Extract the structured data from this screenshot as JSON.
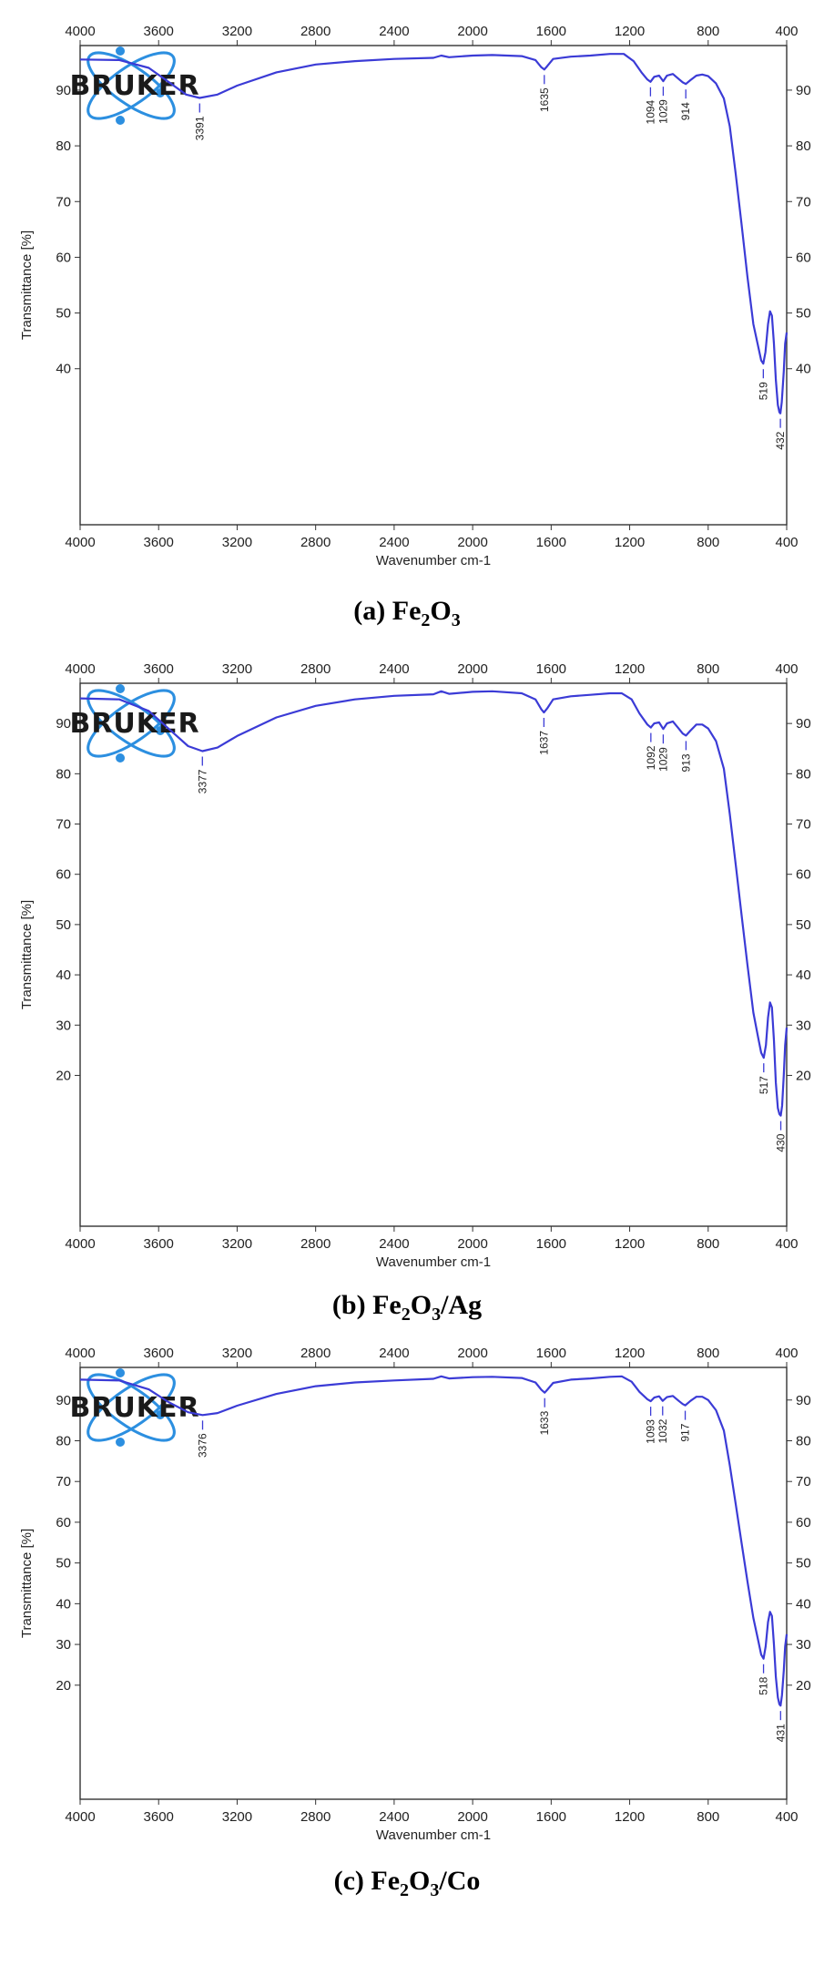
{
  "chart_data": [
    {
      "type": "line",
      "panel_caption": "(a) Fe2O3",
      "caption_parts": {
        "pre": "(a) Fe",
        "s1": "2",
        "mid": "O",
        "s2": "3",
        "post": ""
      },
      "xlabel": "Wavenumber cm-1",
      "ylabel": "Transmittance [%]",
      "xlim": [
        4000,
        400
      ],
      "ylim": [
        12,
        98
      ],
      "x_ticks": [
        4000,
        3600,
        3200,
        2800,
        2400,
        2000,
        1600,
        1200,
        800,
        400
      ],
      "y_ticks": [
        40,
        50,
        60,
        70,
        80,
        90
      ],
      "logo": "BRUKER",
      "series": [
        {
          "color": "#3b3bd6",
          "points": [
            [
              4000,
              95.5
            ],
            [
              3800,
              95.4
            ],
            [
              3650,
              94.0
            ],
            [
              3550,
              91.5
            ],
            [
              3460,
              89.2
            ],
            [
              3391,
              88.6
            ],
            [
              3300,
              89.2
            ],
            [
              3200,
              90.8
            ],
            [
              3000,
              93.2
            ],
            [
              2800,
              94.6
            ],
            [
              2600,
              95.2
            ],
            [
              2400,
              95.6
            ],
            [
              2200,
              95.8
            ],
            [
              2160,
              96.2
            ],
            [
              2120,
              95.9
            ],
            [
              2000,
              96.2
            ],
            [
              1900,
              96.3
            ],
            [
              1750,
              96.1
            ],
            [
              1680,
              95.4
            ],
            [
              1650,
              94.1
            ],
            [
              1635,
              93.7
            ],
            [
              1620,
              94.3
            ],
            [
              1590,
              95.6
            ],
            [
              1500,
              96.0
            ],
            [
              1400,
              96.2
            ],
            [
              1300,
              96.5
            ],
            [
              1230,
              96.5
            ],
            [
              1180,
              95.2
            ],
            [
              1140,
              93.2
            ],
            [
              1110,
              91.9
            ],
            [
              1094,
              91.5
            ],
            [
              1075,
              92.4
            ],
            [
              1050,
              92.6
            ],
            [
              1029,
              91.6
            ],
            [
              1010,
              92.6
            ],
            [
              980,
              92.9
            ],
            [
              950,
              92.0
            ],
            [
              930,
              91.4
            ],
            [
              914,
              91.1
            ],
            [
              890,
              91.8
            ],
            [
              860,
              92.6
            ],
            [
              830,
              92.8
            ],
            [
              800,
              92.5
            ],
            [
              760,
              91.2
            ],
            [
              720,
              88.5
            ],
            [
              690,
              83.5
            ],
            [
              660,
              75.0
            ],
            [
              630,
              66.0
            ],
            [
              600,
              56.5
            ],
            [
              570,
              48.0
            ],
            [
              545,
              44.0
            ],
            [
              530,
              41.5
            ],
            [
              519,
              40.9
            ],
            [
              508,
              43.0
            ],
            [
              495,
              48.0
            ],
            [
              485,
              50.3
            ],
            [
              475,
              49.5
            ],
            [
              465,
              44.5
            ],
            [
              455,
              38.0
            ],
            [
              445,
              33.5
            ],
            [
              437,
              32.2
            ],
            [
              432,
              32.0
            ],
            [
              425,
              34.0
            ],
            [
              415,
              39.5
            ],
            [
              408,
              44.5
            ],
            [
              400,
              46.5
            ]
          ]
        }
      ],
      "peaks": [
        {
          "label": "3391",
          "x": 3391,
          "y": 88.6
        },
        {
          "label": "1635",
          "x": 1635,
          "y": 93.7
        },
        {
          "label": "1094",
          "x": 1094,
          "y": 91.5
        },
        {
          "label": "1029",
          "x": 1029,
          "y": 91.6
        },
        {
          "label": "914",
          "x": 914,
          "y": 91.1
        },
        {
          "label": "519",
          "x": 519,
          "y": 40.9
        },
        {
          "label": "432",
          "x": 432,
          "y": 32.0
        }
      ]
    },
    {
      "type": "line",
      "panel_caption": "(b) Fe2O3/Ag",
      "caption_parts": {
        "pre": "(b) Fe",
        "s1": "2",
        "mid": "O",
        "s2": "3",
        "post": "/Ag"
      },
      "xlabel": "Wavenumber cm-1",
      "ylabel": "Transmittance [%]",
      "xlim": [
        4000,
        400
      ],
      "ylim": [
        -10,
        98
      ],
      "x_ticks": [
        4000,
        3600,
        3200,
        2800,
        2400,
        2000,
        1600,
        1200,
        800,
        400
      ],
      "y_ticks": [
        20,
        30,
        40,
        50,
        60,
        70,
        80,
        90
      ],
      "logo": "BRUKER",
      "series": [
        {
          "color": "#3b3bd6",
          "points": [
            [
              4000,
              95.0
            ],
            [
              3800,
              94.8
            ],
            [
              3650,
              92.5
            ],
            [
              3550,
              89.0
            ],
            [
              3450,
              85.5
            ],
            [
              3377,
              84.5
            ],
            [
              3300,
              85.2
            ],
            [
              3200,
              87.5
            ],
            [
              3000,
              91.2
            ],
            [
              2800,
              93.5
            ],
            [
              2600,
              94.8
            ],
            [
              2400,
              95.5
            ],
            [
              2200,
              95.8
            ],
            [
              2160,
              96.4
            ],
            [
              2120,
              95.9
            ],
            [
              2000,
              96.3
            ],
            [
              1900,
              96.4
            ],
            [
              1750,
              96.0
            ],
            [
              1680,
              94.8
            ],
            [
              1650,
              92.8
            ],
            [
              1637,
              92.2
            ],
            [
              1620,
              93.0
            ],
            [
              1590,
              94.8
            ],
            [
              1500,
              95.4
            ],
            [
              1400,
              95.7
            ],
            [
              1300,
              96.0
            ],
            [
              1240,
              96.0
            ],
            [
              1190,
              94.8
            ],
            [
              1150,
              92.0
            ],
            [
              1110,
              89.8
            ],
            [
              1092,
              89.2
            ],
            [
              1075,
              90.0
            ],
            [
              1050,
              90.2
            ],
            [
              1029,
              88.9
            ],
            [
              1010,
              90.0
            ],
            [
              980,
              90.4
            ],
            [
              950,
              89.0
            ],
            [
              930,
              88.0
            ],
            [
              913,
              87.6
            ],
            [
              890,
              88.6
            ],
            [
              860,
              89.8
            ],
            [
              830,
              89.8
            ],
            [
              800,
              89.0
            ],
            [
              760,
              86.5
            ],
            [
              720,
              81.0
            ],
            [
              690,
              72.0
            ],
            [
              660,
              62.0
            ],
            [
              630,
              52.0
            ],
            [
              600,
              42.0
            ],
            [
              570,
              32.5
            ],
            [
              545,
              27.5
            ],
            [
              530,
              24.5
            ],
            [
              517,
              23.5
            ],
            [
              506,
              26.0
            ],
            [
              495,
              31.5
            ],
            [
              485,
              34.5
            ],
            [
              475,
              33.5
            ],
            [
              465,
              27.0
            ],
            [
              455,
              18.5
            ],
            [
              445,
              13.5
            ],
            [
              437,
              12.3
            ],
            [
              430,
              12.0
            ],
            [
              423,
              14.0
            ],
            [
              415,
              20.0
            ],
            [
              408,
              26.0
            ],
            [
              400,
              29.5
            ]
          ]
        }
      ],
      "peaks": [
        {
          "label": "3377",
          "x": 3377,
          "y": 84.5
        },
        {
          "label": "1637",
          "x": 1637,
          "y": 92.2
        },
        {
          "label": "1092",
          "x": 1092,
          "y": 89.2
        },
        {
          "label": "1029",
          "x": 1029,
          "y": 88.9
        },
        {
          "label": "913",
          "x": 913,
          "y": 87.6
        },
        {
          "label": "517",
          "x": 517,
          "y": 23.5
        },
        {
          "label": "430",
          "x": 430,
          "y": 12.0
        }
      ]
    },
    {
      "type": "line",
      "panel_caption": "(c) Fe2O3/Co",
      "caption_parts": {
        "pre": "(c) Fe",
        "s1": "2",
        "mid": "O",
        "s2": "3",
        "post": "/Co"
      },
      "xlabel": "Wavenumber cm-1",
      "ylabel": "Transmittance [%]",
      "xlim": [
        4000,
        400
      ],
      "ylim": [
        -8,
        98
      ],
      "x_ticks": [
        4000,
        3600,
        3200,
        2800,
        2400,
        2000,
        1600,
        1200,
        800,
        400
      ],
      "y_ticks": [
        20,
        30,
        40,
        50,
        60,
        70,
        80,
        90
      ],
      "logo": "BRUKER",
      "series": [
        {
          "color": "#3b3bd6",
          "points": [
            [
              4000,
              95.0
            ],
            [
              3800,
              94.8
            ],
            [
              3650,
              92.6
            ],
            [
              3550,
              89.5
            ],
            [
              3450,
              87.0
            ],
            [
              3376,
              86.3
            ],
            [
              3300,
              86.8
            ],
            [
              3200,
              88.6
            ],
            [
              3000,
              91.5
            ],
            [
              2800,
              93.4
            ],
            [
              2600,
              94.3
            ],
            [
              2400,
              94.8
            ],
            [
              2200,
              95.2
            ],
            [
              2160,
              95.8
            ],
            [
              2120,
              95.3
            ],
            [
              2000,
              95.6
            ],
            [
              1900,
              95.7
            ],
            [
              1750,
              95.4
            ],
            [
              1680,
              94.3
            ],
            [
              1650,
              92.5
            ],
            [
              1633,
              91.8
            ],
            [
              1620,
              92.5
            ],
            [
              1590,
              94.2
            ],
            [
              1500,
              95.0
            ],
            [
              1400,
              95.3
            ],
            [
              1300,
              95.7
            ],
            [
              1240,
              95.8
            ],
            [
              1190,
              94.5
            ],
            [
              1150,
              92.0
            ],
            [
              1110,
              90.2
            ],
            [
              1093,
              89.7
            ],
            [
              1075,
              90.6
            ],
            [
              1050,
              90.9
            ],
            [
              1032,
              89.8
            ],
            [
              1010,
              90.7
            ],
            [
              980,
              91.0
            ],
            [
              950,
              89.8
            ],
            [
              930,
              89.0
            ],
            [
              917,
              88.7
            ],
            [
              890,
              89.8
            ],
            [
              860,
              90.8
            ],
            [
              830,
              90.8
            ],
            [
              800,
              90.0
            ],
            [
              760,
              87.5
            ],
            [
              720,
              82.5
            ],
            [
              690,
              74.0
            ],
            [
              660,
              64.5
            ],
            [
              630,
              55.0
            ],
            [
              600,
              45.5
            ],
            [
              570,
              36.5
            ],
            [
              545,
              31.0
            ],
            [
              530,
              27.5
            ],
            [
              518,
              26.5
            ],
            [
              507,
              29.5
            ],
            [
              495,
              35.5
            ],
            [
              485,
              38.0
            ],
            [
              475,
              37.0
            ],
            [
              465,
              30.0
            ],
            [
              455,
              22.0
            ],
            [
              445,
              17.0
            ],
            [
              437,
              15.3
            ],
            [
              431,
              15.0
            ],
            [
              424,
              17.5
            ],
            [
              415,
              23.5
            ],
            [
              408,
              29.5
            ],
            [
              400,
              32.5
            ]
          ]
        }
      ],
      "peaks": [
        {
          "label": "3376",
          "x": 3376,
          "y": 86.3
        },
        {
          "label": "1633",
          "x": 1633,
          "y": 91.8
        },
        {
          "label": "1093",
          "x": 1093,
          "y": 89.7
        },
        {
          "label": "1032",
          "x": 1032,
          "y": 89.8
        },
        {
          "label": "917",
          "x": 917,
          "y": 88.7
        },
        {
          "label": "518",
          "x": 518,
          "y": 26.5
        },
        {
          "label": "431",
          "x": 431,
          "y": 15.0
        }
      ]
    }
  ]
}
